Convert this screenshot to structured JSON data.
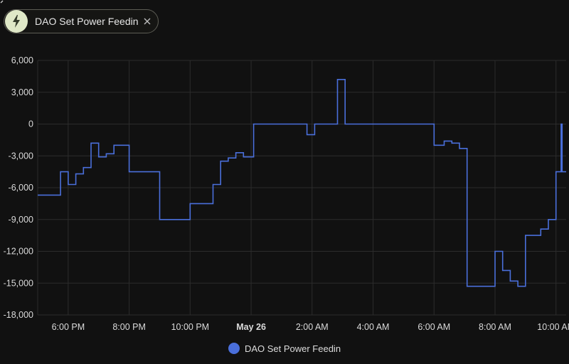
{
  "filter_chip": {
    "label": "DAO Set Power Feedin",
    "icon": "lightning-bolt-icon",
    "close_icon": "close-icon"
  },
  "colors": {
    "background": "#111111",
    "series_line": "#4a6fdb",
    "grid": "#2c2c2c",
    "chip_icon_bg": "#dfe8c7"
  },
  "chart_data": {
    "type": "line",
    "step": true,
    "grid": true,
    "legend_position": "bottom-center",
    "title": "",
    "xlabel": "",
    "ylabel": "",
    "ylim": [
      -18000,
      6000
    ],
    "yticks": [
      "6,000",
      "3,000",
      "0",
      "-3,000",
      "-6,000",
      "-9,000",
      "-12,000",
      "-15,000",
      "-18,000"
    ],
    "xlim": [
      "May 25 17:00",
      "May 26 10:20"
    ],
    "xticks": [
      "6:00 PM",
      "8:00 PM",
      "10:00 PM",
      "May 26",
      "2:00 AM",
      "4:00 AM",
      "6:00 AM",
      "8:00 AM",
      "10:00 AM"
    ],
    "xticks_bold": [
      "May 26"
    ],
    "series": [
      {
        "name": "DAO Set Power Feedin",
        "points": [
          [
            "May 25 17:00",
            -6700
          ],
          [
            "May 25 17:45",
            -4500
          ],
          [
            "May 25 18:00",
            -5700
          ],
          [
            "May 25 18:15",
            -4700
          ],
          [
            "May 25 18:30",
            -4100
          ],
          [
            "May 25 18:45",
            -1800
          ],
          [
            "May 25 19:00",
            -3100
          ],
          [
            "May 25 19:15",
            -2800
          ],
          [
            "May 25 19:30",
            -2000
          ],
          [
            "May 25 20:00",
            -4500
          ],
          [
            "May 25 21:00",
            -9000
          ],
          [
            "May 25 22:00",
            -7500
          ],
          [
            "May 25 22:45",
            -5700
          ],
          [
            "May 25 23:00",
            -3500
          ],
          [
            "May 25 23:15",
            -3200
          ],
          [
            "May 25 23:30",
            -2700
          ],
          [
            "May 25 23:45",
            -3100
          ],
          [
            "May 26 00:05",
            0
          ],
          [
            "May 26 01:50",
            -1000
          ],
          [
            "May 26 02:05",
            0
          ],
          [
            "May 26 02:50",
            4200
          ],
          [
            "May 26 03:05",
            0
          ],
          [
            "May 26 06:00",
            -2000
          ],
          [
            "May 26 06:20",
            -1600
          ],
          [
            "May 26 06:35",
            -1800
          ],
          [
            "May 26 06:50",
            -2300
          ],
          [
            "May 26 07:05",
            -15300
          ],
          [
            "May 26 08:00",
            -12000
          ],
          [
            "May 26 08:15",
            -13800
          ],
          [
            "May 26 08:30",
            -14800
          ],
          [
            "May 26 08:45",
            -15300
          ],
          [
            "May 26 09:00",
            -10500
          ],
          [
            "May 26 09:30",
            -9900
          ],
          [
            "May 26 09:45",
            -9000
          ],
          [
            "May 26 10:00",
            -4500
          ],
          [
            "May 26 10:10",
            0
          ],
          [
            "May 26 10:12",
            -4500
          ],
          [
            "May 26 10:20",
            -4500
          ]
        ]
      }
    ]
  }
}
